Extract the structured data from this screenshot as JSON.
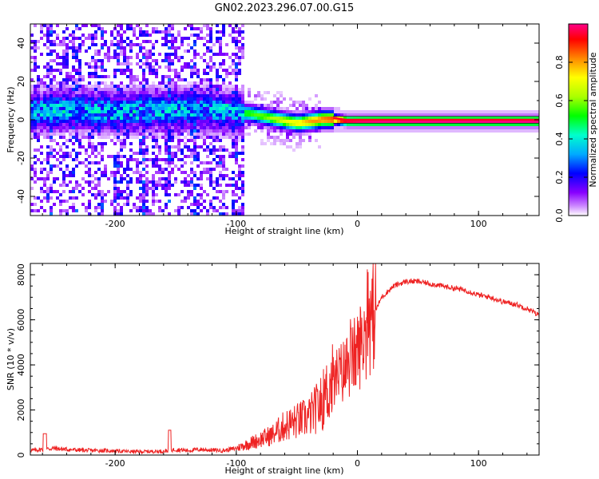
{
  "figure": {
    "title": "GN02.2023.296.07.00.G15"
  },
  "chart_data": [
    {
      "type": "heatmap",
      "title": "",
      "xlabel": "Height of straight line (km)",
      "ylabel": "Frequency (Hz)",
      "xlim": [
        -270,
        150
      ],
      "ylim": [
        -50,
        50
      ],
      "x_ticks": [
        -200,
        -100,
        0,
        100
      ],
      "y_ticks": [
        -40,
        -20,
        0,
        20,
        40
      ],
      "grid": false,
      "colorbar": {
        "label": "Normalized spectral amplitude",
        "range": [
          0,
          1
        ],
        "ticks": [
          0.0,
          0.2,
          0.4,
          0.6,
          0.8
        ],
        "colors": [
          "#ffffff",
          "#8800ff",
          "#0000ff",
          "#00aaff",
          "#00ffcc",
          "#00ff00",
          "#aaff00",
          "#ffff00",
          "#ff8800",
          "#ff0000",
          "#ff0088"
        ]
      },
      "ridge": {
        "x": [
          -270,
          -240,
          -200,
          -160,
          -130,
          -110,
          -90,
          -75,
          -60,
          -50,
          -40,
          -30,
          -20,
          -10,
          0,
          20,
          50,
          100,
          150
        ],
        "freq": [
          5,
          6,
          5,
          6,
          6,
          5,
          4,
          2,
          0,
          -1,
          0,
          1,
          1,
          0,
          0,
          0,
          0,
          0,
          0
        ],
        "amplitude": [
          0.3,
          0.35,
          0.3,
          0.35,
          0.4,
          0.45,
          0.55,
          0.6,
          0.7,
          0.75,
          0.8,
          0.85,
          0.9,
          0.95,
          0.98,
          1.0,
          1.0,
          1.0,
          1.0
        ]
      }
    },
    {
      "type": "line",
      "title": "",
      "xlabel": "Height of straight line (km)",
      "ylabel": "SNR (10 * v/v)",
      "xlim": [
        -270,
        150
      ],
      "ylim": [
        0,
        8500
      ],
      "x_ticks": [
        -200,
        -100,
        0,
        100
      ],
      "y_ticks": [
        0,
        2000,
        4000,
        6000,
        8000
      ],
      "grid": false,
      "series": [
        {
          "color": "#ee2222",
          "x": [
            -270,
            -260,
            -250,
            -240,
            -230,
            -220,
            -210,
            -200,
            -190,
            -180,
            -170,
            -160,
            -150,
            -140,
            -130,
            -120,
            -110,
            -100,
            -90,
            -80,
            -70,
            -60,
            -50,
            -40,
            -30,
            -20,
            -10,
            0,
            10,
            20,
            30,
            40,
            50,
            60,
            70,
            80,
            90,
            100,
            110,
            120,
            130,
            140,
            150
          ],
          "values": [
            200,
            250,
            300,
            250,
            220,
            200,
            200,
            180,
            160,
            150,
            160,
            170,
            250,
            200,
            250,
            220,
            200,
            300,
            500,
            700,
            900,
            1300,
            1500,
            1700,
            2300,
            3300,
            3800,
            4600,
            5800,
            7000,
            7500,
            7700,
            7700,
            7600,
            7500,
            7400,
            7300,
            7100,
            7000,
            6800,
            6700,
            6500,
            6200
          ]
        }
      ]
    }
  ]
}
